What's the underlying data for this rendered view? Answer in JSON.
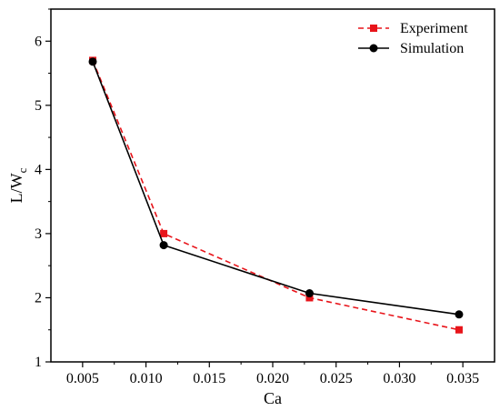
{
  "chart_data": {
    "type": "line",
    "xlabel": "Ca",
    "ylabel": "L/W",
    "ylabel_subscript": "c",
    "xlim": [
      0.0025,
      0.0375
    ],
    "ylim": [
      1,
      6.5
    ],
    "x_ticks": [
      0.005,
      0.01,
      0.015,
      0.02,
      0.025,
      0.03,
      0.035
    ],
    "x_tick_labels": [
      "0.005",
      "0.010",
      "0.015",
      "0.020",
      "0.025",
      "0.030",
      "0.035"
    ],
    "y_ticks": [
      1,
      2,
      3,
      4,
      5,
      6
    ],
    "y_tick_labels": [
      "1",
      "2",
      "3",
      "4",
      "5",
      "6"
    ],
    "grid": false,
    "legend_position": "top-right",
    "series": [
      {
        "name": "Experiment",
        "color": "#e8141a",
        "line_style": "dashed",
        "marker": "square",
        "x": [
          0.0058,
          0.0114,
          0.0229,
          0.0347
        ],
        "y": [
          5.7,
          3.0,
          2.0,
          1.5
        ]
      },
      {
        "name": "Simulation",
        "color": "#000000",
        "line_style": "solid",
        "marker": "circle",
        "x": [
          0.0058,
          0.0114,
          0.0229,
          0.0347
        ],
        "y": [
          5.68,
          2.82,
          2.07,
          1.74
        ]
      }
    ]
  }
}
